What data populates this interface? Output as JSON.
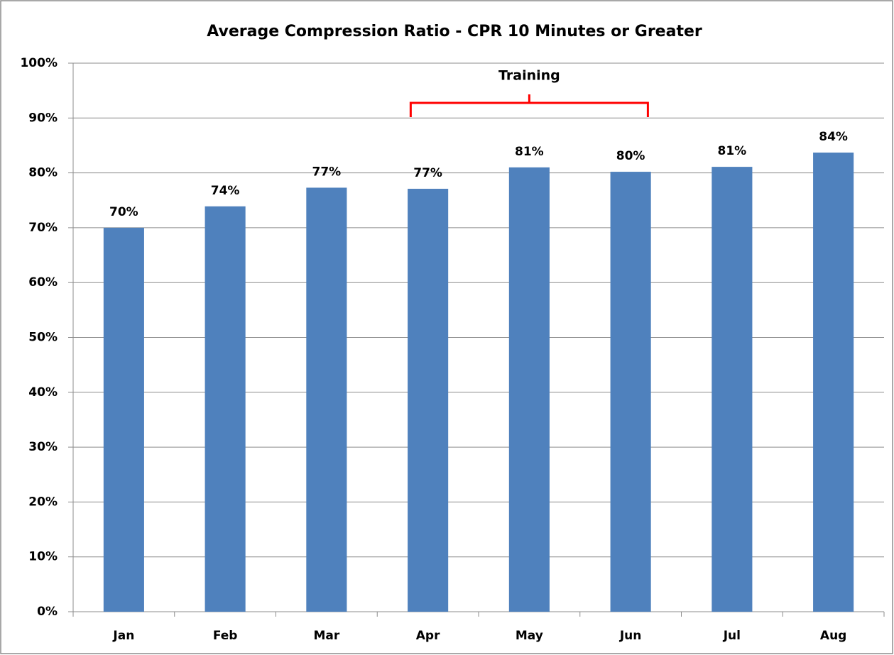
{
  "chart_data": {
    "type": "bar",
    "title": "Average Compression Ratio - CPR 10 Minutes or Greater",
    "categories": [
      "Jan",
      "Feb",
      "Mar",
      "Apr",
      "May",
      "Jun",
      "Jul",
      "Aug"
    ],
    "values": [
      70,
      73.9,
      77.3,
      77.1,
      81,
      80.2,
      81.1,
      83.7
    ],
    "value_labels": [
      "70%",
      "74%",
      "77%",
      "77%",
      "81%",
      "80%",
      "81%",
      "84%"
    ],
    "color": "#4f81bd",
    "ylim": [
      0,
      100
    ],
    "yticks": [
      {
        "value": 0,
        "label": "0%"
      },
      {
        "value": 10,
        "label": "10%"
      },
      {
        "value": 20,
        "label": "20%"
      },
      {
        "value": 30,
        "label": "30%"
      },
      {
        "value": 40,
        "label": "40%"
      },
      {
        "value": 50,
        "label": "50%"
      },
      {
        "value": 60,
        "label": "60%"
      },
      {
        "value": 70,
        "label": "70%"
      },
      {
        "value": 80,
        "label": "80%"
      },
      {
        "value": 90,
        "label": "90%"
      },
      {
        "value": 100,
        "label": "100%"
      }
    ],
    "grid": true,
    "annotation": {
      "text": "Training",
      "color": "#ff0000"
    }
  }
}
